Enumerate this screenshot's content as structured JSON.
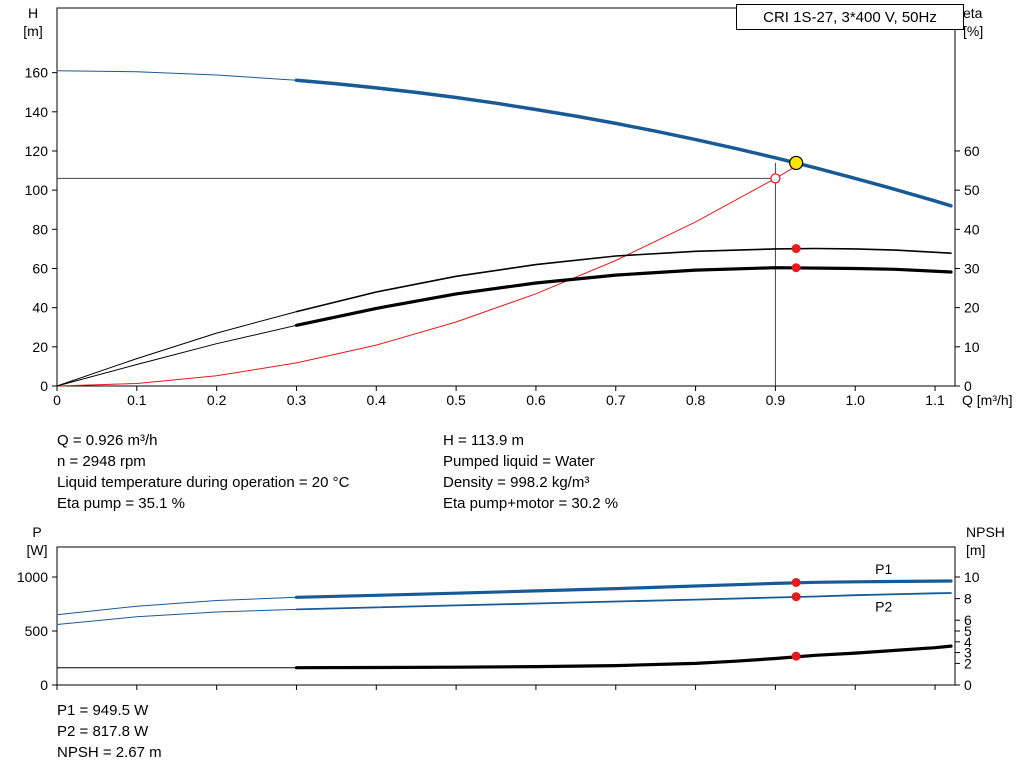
{
  "title_box": "CRI 1S-27, 3*400 V, 50Hz",
  "colors": {
    "curve_blue": "#185a96",
    "label_blue": "#2a6db4",
    "marker_red": "#e8191c",
    "marker_yellow": "#ffe400",
    "black": "#000000",
    "ref_line": "#444444"
  },
  "info_top": {
    "left": [
      "Q = 0.926 m³/h",
      "n = 2948 rpm",
      "Liquid temperature during operation = 20 °C",
      "Eta pump = 35.1 %"
    ],
    "right": [
      "H = 113.9 m",
      "Pumped liquid = Water",
      "Density = 998.2 kg/m³",
      "Eta pump+motor = 30.2 %"
    ]
  },
  "info_bottom": [
    "P1 = 949.5 W",
    "P2 = 817.8 W",
    "NPSH = 2.67 m"
  ],
  "chart_data": [
    {
      "type": "line",
      "name": "hq-eta-chart",
      "x_label": "Q [m³/h]",
      "y_left_label": [
        "H",
        "[m]"
      ],
      "y_right_label": [
        "eta",
        "[%]"
      ],
      "xlim": [
        0,
        1.125
      ],
      "ylim_left": [
        0,
        193
      ],
      "ylim_right": [
        0,
        96.5
      ],
      "x_ticks": [
        0,
        0.1,
        0.2,
        0.3,
        0.4,
        0.5,
        0.6,
        0.7,
        0.8,
        0.9,
        1.0,
        1.1
      ],
      "x_tick_labels": [
        "0",
        "0.1",
        "0.2",
        "0.3",
        "0.4",
        "0.5",
        "0.6",
        "0.7",
        "0.8",
        "0.9",
        "1.0",
        "1.1"
      ],
      "y_left_ticks": [
        0,
        20,
        40,
        60,
        80,
        100,
        120,
        140,
        160
      ],
      "y_right_ticks": [
        0,
        10,
        20,
        30,
        40,
        50,
        60
      ],
      "ref_lines": [
        {
          "type": "h",
          "name": "duty-h-line",
          "y": 106,
          "x1": 0,
          "x2": 0.9,
          "color": "#444444",
          "width": 1
        },
        {
          "type": "v",
          "name": "duty-q-line",
          "x": 0.9,
          "y1": 0,
          "y2": 113.9,
          "color": "#444444",
          "width": 1
        }
      ],
      "series": [
        {
          "name": "system-curve",
          "axis": "left",
          "color": "#e8191c",
          "width": 1,
          "points": [
            [
              0,
              0
            ],
            [
              0.1,
              1.3
            ],
            [
              0.2,
              5.2
            ],
            [
              0.3,
              11.8
            ],
            [
              0.4,
              20.9
            ],
            [
              0.5,
              32.7
            ],
            [
              0.6,
              47.1
            ],
            [
              0.7,
              64.1
            ],
            [
              0.8,
              83.8
            ],
            [
              0.9,
              106
            ],
            [
              0.93,
              113.2
            ]
          ]
        },
        {
          "name": "pump-curve-low-flow",
          "axis": "left",
          "color": "#185a96",
          "width": 1,
          "points": [
            [
              0,
              161
            ],
            [
              0.1,
              160.4
            ],
            [
              0.2,
              158.8
            ],
            [
              0.3,
              156.1
            ]
          ]
        },
        {
          "name": "pump-curve",
          "axis": "left",
          "color": "#185a96",
          "width": 3.5,
          "points": [
            [
              0.3,
              156.1
            ],
            [
              0.35,
              154.3
            ],
            [
              0.4,
              152.2
            ],
            [
              0.45,
              149.9
            ],
            [
              0.5,
              147.3
            ],
            [
              0.55,
              144.4
            ],
            [
              0.6,
              141.2
            ],
            [
              0.65,
              137.8
            ],
            [
              0.7,
              134.1
            ],
            [
              0.75,
              130.1
            ],
            [
              0.8,
              125.8
            ],
            [
              0.85,
              121.3
            ],
            [
              0.9,
              116.5
            ],
            [
              0.95,
              111.4
            ],
            [
              1,
              106
            ],
            [
              1.05,
              100.4
            ],
            [
              1.1,
              94.5
            ],
            [
              1.12,
              92
            ]
          ]
        },
        {
          "name": "eta-pump-low-flow",
          "axis": "right",
          "color": "#000000",
          "width": 1,
          "points": [
            [
              0,
              0
            ],
            [
              0.1,
              7
            ],
            [
              0.2,
              13.5
            ],
            [
              0.3,
              19
            ]
          ]
        },
        {
          "name": "eta-pump-curve",
          "axis": "right",
          "color": "#000000",
          "width": 1.6,
          "points": [
            [
              0.3,
              19
            ],
            [
              0.4,
              24
            ],
            [
              0.5,
              28
            ],
            [
              0.6,
              31
            ],
            [
              0.7,
              33.2
            ],
            [
              0.8,
              34.4
            ],
            [
              0.9,
              35
            ],
            [
              0.95,
              35.1
            ],
            [
              1,
              35
            ],
            [
              1.05,
              34.7
            ],
            [
              1.12,
              33.9
            ]
          ]
        },
        {
          "name": "eta-pump-motor-low-flow",
          "axis": "right",
          "color": "#000000",
          "width": 1,
          "points": [
            [
              0,
              0
            ],
            [
              0.1,
              5.5
            ],
            [
              0.2,
              10.8
            ],
            [
              0.3,
              15.5
            ]
          ]
        },
        {
          "name": "eta-pump-motor-curve",
          "axis": "right",
          "color": "#000000",
          "width": 3.2,
          "points": [
            [
              0.3,
              15.5
            ],
            [
              0.4,
              19.8
            ],
            [
              0.5,
              23.5
            ],
            [
              0.6,
              26.3
            ],
            [
              0.7,
              28.3
            ],
            [
              0.8,
              29.6
            ],
            [
              0.9,
              30.2
            ],
            [
              1,
              30
            ],
            [
              1.05,
              29.8
            ],
            [
              1.12,
              29.1
            ]
          ]
        }
      ],
      "markers": [
        {
          "name": "requested-duty-point",
          "x": 0.9,
          "y": 106,
          "axis": "left",
          "r": 4.5,
          "fill": "#ffffff",
          "stroke": "#e8191c",
          "stroke_width": 1.3
        },
        {
          "name": "duty-point",
          "x": 0.926,
          "y": 113.9,
          "axis": "left",
          "r": 6.5,
          "fill": "#ffe400",
          "stroke": "#000000",
          "stroke_width": 1.2
        },
        {
          "name": "eta-pump-point",
          "x": 0.926,
          "y": 35.1,
          "axis": "right",
          "r": 4.5,
          "fill": "#e8191c",
          "stroke": "none",
          "stroke_width": 0
        },
        {
          "name": "eta-pump-motor-point",
          "x": 0.926,
          "y": 30.2,
          "axis": "right",
          "r": 4.5,
          "fill": "#e8191c",
          "stroke": "none",
          "stroke_width": 0
        }
      ],
      "curve_labels": []
    },
    {
      "type": "line",
      "name": "power-npsh-chart",
      "x_label": "",
      "y_left_label": [
        "P",
        "[W]"
      ],
      "y_right_label": [
        "NPSH",
        "[m]"
      ],
      "xlim": [
        0,
        1.125
      ],
      "ylim_left": [
        0,
        1278
      ],
      "ylim_right": [
        0,
        12.78
      ],
      "x_ticks": [
        0,
        0.1,
        0.2,
        0.3,
        0.4,
        0.5,
        0.6,
        0.7,
        0.8,
        0.9,
        1.0,
        1.1
      ],
      "x_tick_labels": null,
      "y_left_ticks": [
        0,
        500,
        1000
      ],
      "y_right_ticks": [
        0,
        2,
        3,
        4,
        5,
        6,
        8,
        10
      ],
      "ref_lines": [],
      "series": [
        {
          "name": "p1-low-flow",
          "axis": "left",
          "color": "#185a96",
          "width": 1,
          "points": [
            [
              0,
              650
            ],
            [
              0.1,
              730
            ],
            [
              0.2,
              783
            ],
            [
              0.3,
              812
            ]
          ]
        },
        {
          "name": "p1-curve",
          "axis": "left",
          "color": "#185a96",
          "width": 3.2,
          "points": [
            [
              0.3,
              812
            ],
            [
              0.4,
              831
            ],
            [
              0.5,
              850
            ],
            [
              0.6,
              871
            ],
            [
              0.7,
              893
            ],
            [
              0.8,
              917
            ],
            [
              0.9,
              941
            ],
            [
              0.95,
              951
            ],
            [
              1,
              956
            ],
            [
              1.1,
              962
            ],
            [
              1.12,
              963
            ]
          ]
        },
        {
          "name": "p2-low-flow",
          "axis": "left",
          "color": "#185a96",
          "width": 1,
          "points": [
            [
              0,
              560
            ],
            [
              0.1,
              632
            ],
            [
              0.2,
              676
            ],
            [
              0.3,
              700
            ]
          ]
        },
        {
          "name": "p2-curve",
          "axis": "left",
          "color": "#185a96",
          "width": 1.8,
          "points": [
            [
              0.3,
              700
            ],
            [
              0.4,
              719
            ],
            [
              0.5,
              737
            ],
            [
              0.6,
              755
            ],
            [
              0.7,
              773
            ],
            [
              0.8,
              791
            ],
            [
              0.9,
              810
            ],
            [
              0.95,
              820
            ],
            [
              1,
              832
            ],
            [
              1.1,
              849
            ],
            [
              1.12,
              852
            ]
          ]
        },
        {
          "name": "npsh-low-flow",
          "axis": "right",
          "color": "#000000",
          "width": 1,
          "points": [
            [
              0,
              1.6
            ],
            [
              0.3,
              1.6
            ]
          ]
        },
        {
          "name": "npsh-curve",
          "axis": "right",
          "color": "#000000",
          "width": 3.2,
          "points": [
            [
              0.3,
              1.6
            ],
            [
              0.4,
              1.62
            ],
            [
              0.5,
              1.65
            ],
            [
              0.6,
              1.7
            ],
            [
              0.7,
              1.8
            ],
            [
              0.8,
              2
            ],
            [
              0.85,
              2.2
            ],
            [
              0.9,
              2.45
            ],
            [
              0.95,
              2.75
            ],
            [
              1,
              2.95
            ],
            [
              1.05,
              3.2
            ],
            [
              1.1,
              3.45
            ],
            [
              1.12,
              3.6
            ]
          ]
        }
      ],
      "markers": [
        {
          "name": "p1-point",
          "x": 0.926,
          "y": 949.5,
          "axis": "left",
          "r": 4.5,
          "fill": "#e8191c",
          "stroke": "none",
          "stroke_width": 0
        },
        {
          "name": "p2-point",
          "x": 0.926,
          "y": 817.8,
          "axis": "left",
          "r": 4.5,
          "fill": "#e8191c",
          "stroke": "none",
          "stroke_width": 0
        },
        {
          "name": "npsh-point",
          "x": 0.926,
          "y": 2.67,
          "axis": "right",
          "r": 4.5,
          "fill": "#e8191c",
          "stroke": "none",
          "stroke_width": 0
        }
      ],
      "curve_labels": [
        {
          "text": "P1",
          "x": 1.025,
          "y": 1075,
          "axis": "left",
          "color": "#2a6db4"
        },
        {
          "text": "P2",
          "x": 1.025,
          "y": 728,
          "axis": "left",
          "color": "#2a6db4"
        }
      ]
    }
  ]
}
